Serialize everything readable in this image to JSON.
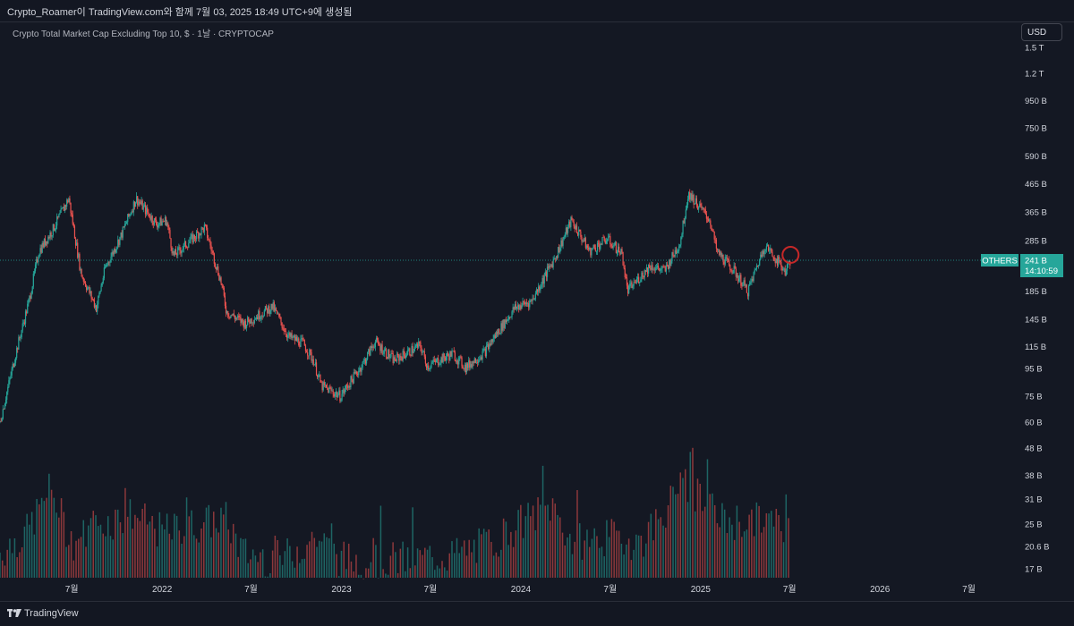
{
  "header": {
    "attribution": "Crypto_Roamer이 TradingView.com와 함께 7월 03, 2025 18:49 UTC+9에 생성됨"
  },
  "toolbar": {
    "currency": "USD"
  },
  "footer": {
    "brand": "TradingView",
    "logo_icon": "tradingview-logo-icon"
  },
  "colors": {
    "up": "#26a69a",
    "down": "#ef5350",
    "background": "#141823",
    "marker": "#c62828"
  },
  "chart_data": {
    "type": "candlestick",
    "title": "Crypto Total Market Cap Excluding Top 10, $ · 1날 · CRYPTOCAP",
    "symbol": "OTHERS",
    "y_scale": "log",
    "last_price_label": "241 B",
    "countdown_label": "14:10:59",
    "y_ticks": [
      {
        "label": "1.5 T",
        "value": 1500
      },
      {
        "label": "1.2 T",
        "value": 1200
      },
      {
        "label": "950 B",
        "value": 950
      },
      {
        "label": "750 B",
        "value": 750
      },
      {
        "label": "590 B",
        "value": 590
      },
      {
        "label": "465 B",
        "value": 465
      },
      {
        "label": "365 B",
        "value": 365
      },
      {
        "label": "285 B",
        "value": 285
      },
      {
        "label": "185 B",
        "value": 185
      },
      {
        "label": "145 B",
        "value": 145
      },
      {
        "label": "115 B",
        "value": 115
      },
      {
        "label": "95 B",
        "value": 95
      },
      {
        "label": "75 B",
        "value": 75
      },
      {
        "label": "60 B",
        "value": 60
      }
    ],
    "volume_ticks": [
      {
        "label": "48 B",
        "value": 48
      },
      {
        "label": "38 B",
        "value": 38
      },
      {
        "label": "31 B",
        "value": 31
      },
      {
        "label": "25 B",
        "value": 25
      },
      {
        "label": "20.6 B",
        "value": 20.6
      },
      {
        "label": "17 B",
        "value": 17
      }
    ],
    "x_ticks": [
      {
        "label": "7월",
        "date": "2021-07-01"
      },
      {
        "label": "2022",
        "date": "2022-01-01"
      },
      {
        "label": "7월",
        "date": "2022-07-01"
      },
      {
        "label": "2023",
        "date": "2023-01-01"
      },
      {
        "label": "7월",
        "date": "2023-07-01"
      },
      {
        "label": "2024",
        "date": "2024-01-01"
      },
      {
        "label": "7월",
        "date": "2024-07-01"
      },
      {
        "label": "2025",
        "date": "2025-01-01"
      },
      {
        "label": "7월",
        "date": "2025-07-01"
      },
      {
        "label": "2026",
        "date": "2026-01-01"
      },
      {
        "label": "7월",
        "date": "2026-07-01"
      }
    ],
    "x_range": [
      "2021-02-05",
      "2026-10-10"
    ],
    "series": [
      {
        "name": "OTHERS",
        "dates": [
          "2021-02-05",
          "2021-03-10",
          "2021-04-05",
          "2021-04-25",
          "2021-05-22",
          "2021-06-25",
          "2021-07-20",
          "2021-08-20",
          "2021-09-07",
          "2021-10-10",
          "2021-11-09",
          "2021-12-20",
          "2022-01-10",
          "2022-01-24",
          "2022-03-29",
          "2022-05-01",
          "2022-05-12",
          "2022-06-18",
          "2022-08-14",
          "2022-09-15",
          "2022-10-15",
          "2022-11-05",
          "2022-11-21",
          "2022-12-30",
          "2023-02-15",
          "2023-03-10",
          "2023-04-18",
          "2023-06-10",
          "2023-06-25",
          "2023-08-15",
          "2023-09-11",
          "2023-10-20",
          "2023-11-15",
          "2023-12-20",
          "2024-01-23",
          "2024-03-12",
          "2024-04-13",
          "2024-05-20",
          "2024-06-24",
          "2024-07-25",
          "2024-08-05",
          "2024-09-20",
          "2024-10-20",
          "2024-11-20",
          "2024-12-07",
          "2025-01-20",
          "2025-02-03",
          "2025-03-10",
          "2025-04-07",
          "2025-05-12",
          "2025-06-22",
          "2025-07-03"
        ],
        "close_B": [
          60,
          110,
          170,
          260,
          310,
          410,
          215,
          160,
          225,
          300,
          410,
          330,
          340,
          250,
          320,
          200,
          155,
          140,
          162,
          125,
          118,
          102,
          82,
          75,
          100,
          120,
          102,
          116,
          97,
          108,
          96,
          110,
          130,
          160,
          170,
          250,
          340,
          260,
          290,
          255,
          185,
          230,
          220,
          280,
          430,
          340,
          260,
          220,
          185,
          275,
          220,
          241
        ]
      },
      {
        "name": "volume",
        "dates": [
          "2021-02-05",
          "2021-04-01",
          "2021-05-19",
          "2021-07-01",
          "2021-09-07",
          "2021-11-01",
          "2022-01-01",
          "2022-05-10",
          "2022-06-15",
          "2022-09-01",
          "2022-11-09",
          "2023-01-01",
          "2023-06-01",
          "2023-09-01",
          "2023-11-01",
          "2024-01-01",
          "2024-03-05",
          "2024-04-13",
          "2024-07-01",
          "2024-09-01",
          "2024-11-12",
          "2024-12-05",
          "2025-02-03",
          "2025-04-07",
          "2025-05-12",
          "2025-07-03"
        ],
        "values_B": [
          20,
          24,
          35,
          22,
          26,
          28,
          24,
          27,
          20,
          19,
          23,
          19,
          19,
          20,
          22,
          26,
          30,
          22,
          23,
          22,
          33,
          36,
          27,
          26,
          27,
          24
        ]
      }
    ]
  }
}
